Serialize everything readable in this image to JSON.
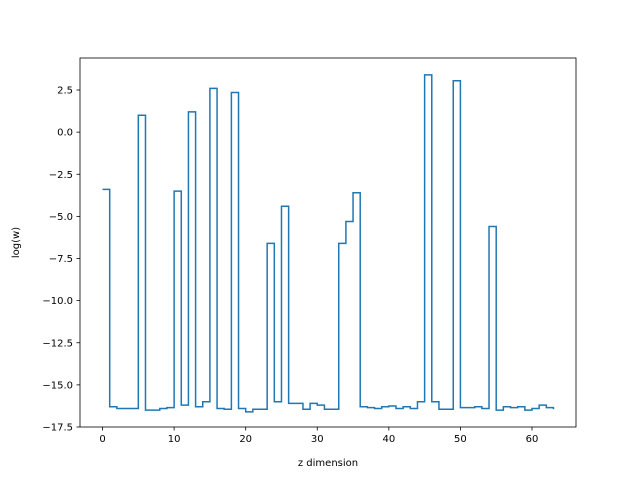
{
  "chart_data": {
    "type": "line",
    "drawstyle": "steps-post",
    "xlabel": "z dimension",
    "ylabel": "log(w)",
    "xlim": [
      -3.15,
      66.15
    ],
    "ylim": [
      -17.5,
      4.4
    ],
    "xticks": [
      0,
      10,
      20,
      30,
      40,
      50,
      60
    ],
    "yticks": [
      -17.5,
      -15.0,
      -12.5,
      -10.0,
      -7.5,
      -5.0,
      -2.5,
      0.0,
      2.5
    ],
    "ytick_labels": [
      "−17.5",
      "−15.0",
      "−12.5",
      "−10.0",
      "−7.5",
      "−5.0",
      "−2.5",
      "0.0",
      "2.5"
    ],
    "series_color": "#1f77b4",
    "series": [
      {
        "x": [
          0,
          1,
          2,
          3,
          4,
          5,
          6,
          7,
          8,
          9,
          10,
          11,
          12,
          13,
          14,
          15,
          16,
          17,
          18,
          19,
          20,
          21,
          22,
          23,
          24,
          25,
          26,
          27,
          28,
          29,
          30,
          31,
          32,
          33,
          34,
          35,
          36,
          37,
          38,
          39,
          40,
          41,
          42,
          43,
          44,
          45,
          46,
          47,
          48,
          49,
          50,
          51,
          52,
          53,
          54,
          55,
          56,
          57,
          58,
          59,
          60,
          61,
          62,
          63
        ],
        "values": [
          -3.4,
          -16.3,
          -16.4,
          -16.4,
          -16.4,
          1.0,
          -16.5,
          -16.5,
          -16.4,
          -16.35,
          -3.5,
          -16.2,
          1.2,
          -16.3,
          -16.0,
          2.6,
          -16.4,
          -16.45,
          2.35,
          -16.4,
          -16.6,
          -16.45,
          -16.45,
          -6.6,
          -16.0,
          -4.4,
          -16.1,
          -16.1,
          -16.45,
          -16.1,
          -16.2,
          -16.45,
          -16.45,
          -6.6,
          -5.3,
          -3.6,
          -16.3,
          -16.35,
          -16.4,
          -16.3,
          -16.25,
          -16.4,
          -16.3,
          -16.4,
          -16.0,
          3.4,
          -16.0,
          -16.45,
          -16.45,
          3.05,
          -16.35,
          -16.35,
          -16.3,
          -16.4,
          -5.6,
          -16.5,
          -16.3,
          -16.35,
          -16.3,
          -16.5,
          -16.4,
          -16.2,
          -16.35,
          -16.45
        ]
      }
    ]
  }
}
